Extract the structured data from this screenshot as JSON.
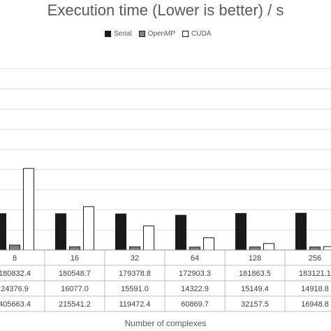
{
  "chart_data": {
    "type": "bar",
    "title": "Execution time (Lower is better) / s",
    "xlabel": "Number of complexes",
    "categories": [
      "8",
      "16",
      "32",
      "64",
      "128",
      "256"
    ],
    "series": [
      {
        "name": "Serial",
        "color": "#1a1a1a",
        "values": [
          180832.4,
          180548.7,
          179378.8,
          172903.3,
          181863.5,
          183121.1
        ],
        "labels": [
          "180832.4",
          "180548.7",
          "179378.8",
          "172903.3",
          "181863.5",
          "183121.1"
        ]
      },
      {
        "name": "OpenMP",
        "color": "#808080",
        "values": [
          24376.9,
          16077.0,
          15591.0,
          14322.9,
          15149.4,
          14918.8
        ],
        "labels": [
          "24376.9",
          "16077.0",
          "15591.0",
          "14322.9",
          "15149.4",
          "14918.8"
        ]
      },
      {
        "name": "CUDA",
        "color": "#ffffff",
        "values": [
          405663.4,
          215541.2,
          119472.4,
          60869.7,
          32157.5,
          16948.8
        ],
        "labels": [
          "405663.4",
          "215541.2",
          "119472.4",
          "60869.7",
          "32157.5",
          "16948.8"
        ]
      }
    ],
    "ylim": [
      0,
      1000000
    ],
    "grid": true,
    "legend": "top",
    "data_table": true
  }
}
